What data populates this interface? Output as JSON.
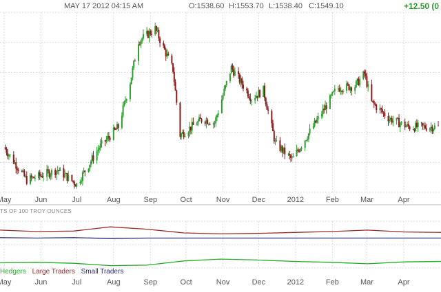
{
  "header": {
    "datetime": "MAY 17 2012 04:15 AM",
    "open": "O:1538.60",
    "high": "H:1553.70",
    "low": "L:1538.40",
    "close": "C:1549.10",
    "change": "+12.50 (0"
  },
  "colors": {
    "up": "#2e9e2e",
    "down": "#8b1a1a",
    "grid": "#dcdcdc",
    "hedgers": "#22aa22",
    "large_traders": "#9b2a2a",
    "small_traders": "#2a2a7a"
  },
  "chart_data": [
    {
      "type": "candlestick",
      "title": "",
      "x_tick_labels": [
        "May",
        "Jun",
        "Jul",
        "Aug",
        "Sep",
        "Oct",
        "Nov",
        "Dec",
        "2012",
        "Feb",
        "Mar",
        "Apr"
      ],
      "x_range": [
        "2011-05-01",
        "2012-04-30"
      ],
      "ylim": [
        1480,
        1920
      ],
      "grid": true,
      "approx_close_path": [
        {
          "x": "2011-05-01",
          "y": 1590
        },
        {
          "x": "2011-05-20",
          "y": 1510
        },
        {
          "x": "2011-06-15",
          "y": 1535
        },
        {
          "x": "2011-07-01",
          "y": 1500
        },
        {
          "x": "2011-07-20",
          "y": 1590
        },
        {
          "x": "2011-08-05",
          "y": 1640
        },
        {
          "x": "2011-08-15",
          "y": 1750
        },
        {
          "x": "2011-08-22",
          "y": 1850
        },
        {
          "x": "2011-09-05",
          "y": 1880
        },
        {
          "x": "2011-09-20",
          "y": 1780
        },
        {
          "x": "2011-09-26",
          "y": 1620
        },
        {
          "x": "2011-10-15",
          "y": 1660
        },
        {
          "x": "2011-10-25",
          "y": 1650
        },
        {
          "x": "2011-11-08",
          "y": 1785
        },
        {
          "x": "2011-11-25",
          "y": 1710
        },
        {
          "x": "2011-12-05",
          "y": 1730
        },
        {
          "x": "2011-12-15",
          "y": 1600
        },
        {
          "x": "2011-12-29",
          "y": 1560
        },
        {
          "x": "2012-01-20",
          "y": 1660
        },
        {
          "x": "2012-02-05",
          "y": 1735
        },
        {
          "x": "2012-02-20",
          "y": 1740
        },
        {
          "x": "2012-02-28",
          "y": 1770
        },
        {
          "x": "2012-03-05",
          "y": 1700
        },
        {
          "x": "2012-03-20",
          "y": 1660
        },
        {
          "x": "2012-04-05",
          "y": 1640
        },
        {
          "x": "2012-04-30",
          "y": 1640
        }
      ]
    },
    {
      "type": "line",
      "title": "TS OF 100 TROY OUNCES",
      "legend": [
        "Hedgers",
        "Large Traders",
        "Small Traders"
      ],
      "legend_placement": "bottom-left",
      "x_tick_labels": [
        "May",
        "Jun",
        "Jul",
        "Aug",
        "Sep",
        "Oct",
        "Nov",
        "Dec",
        "2012",
        "Feb",
        "Mar",
        "Apr"
      ],
      "ylim": [
        -1,
        1
      ],
      "series": [
        {
          "name": "Large Traders",
          "values": [
            0.62,
            0.56,
            0.58,
            0.76,
            0.66,
            0.5,
            0.46,
            0.48,
            0.52,
            0.56,
            0.62,
            0.54,
            0.52
          ]
        },
        {
          "name": "Small Traders",
          "values": [
            0.3,
            0.28,
            0.3,
            0.26,
            0.28,
            0.28,
            0.28,
            0.28,
            0.28,
            0.28,
            0.28,
            0.28,
            0.28
          ]
        },
        {
          "name": "Hedgers",
          "values": [
            -0.78,
            -0.76,
            -0.8,
            -0.9,
            -0.88,
            -0.7,
            -0.62,
            -0.66,
            -0.72,
            -0.76,
            -0.82,
            -0.74,
            -0.72
          ]
        }
      ]
    }
  ],
  "legend": {
    "hedgers": "Hedgers",
    "large_traders": "Large Traders",
    "small_traders": "Small Traders"
  }
}
